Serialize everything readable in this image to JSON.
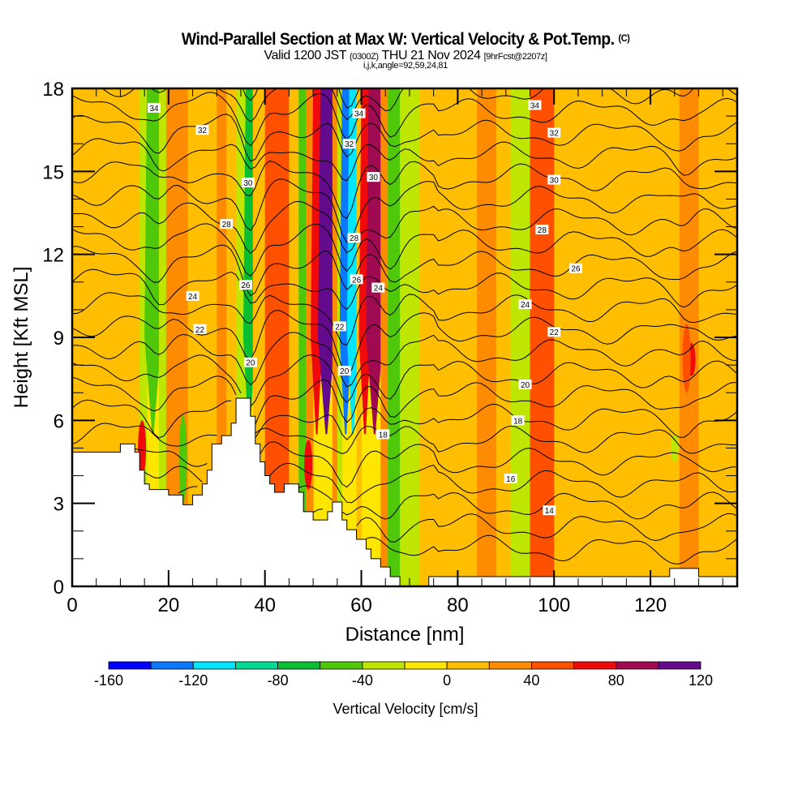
{
  "title": {
    "main": "Wind-Parallel Section at Max W: Vertical Velocity & Pot.Temp.",
    "copyright": "(C)",
    "valid_prefix": "Valid 1200 JST",
    "valid_utc": "(0300Z)",
    "valid_date": "THU 21 Nov 2024",
    "forecast": "[9hrFcst@2207z]",
    "indices": "i,j,k,angle=92,59,24,81"
  },
  "chart_data": {
    "type": "heatmap",
    "title": "Wind-Parallel Section at Max W: Vertical Velocity & Pot.Temp.",
    "xlabel": "Distance [nm]",
    "ylabel": "Height [Kft MSL]",
    "xlim": [
      0,
      138
    ],
    "ylim": [
      0,
      18
    ],
    "xticks": [
      0,
      20,
      40,
      60,
      80,
      100,
      120
    ],
    "xtick_labels": [
      "0",
      "20",
      "40",
      "60",
      "80",
      "100",
      "120"
    ],
    "yticks": [
      0,
      3,
      6,
      9,
      12,
      15,
      18
    ],
    "ytick_labels": [
      "0",
      "3",
      "6",
      "9",
      "12",
      "15",
      "18"
    ],
    "colorbar": {
      "label": "Vertical Velocity [cm/s]",
      "bounds": [
        -160,
        -140,
        -120,
        -100,
        -80,
        -60,
        -40,
        -20,
        0,
        20,
        40,
        60,
        80,
        100,
        120
      ],
      "tick_values": [
        -160,
        -120,
        -80,
        -40,
        0,
        40,
        80,
        120
      ],
      "tick_labels": [
        "-160",
        "-120",
        "-80",
        "-40",
        "0",
        "40",
        "80",
        "120"
      ],
      "colors": [
        "#0000ff",
        "#0a78ff",
        "#00e6ff",
        "#00dc96",
        "#0abe32",
        "#50c80a",
        "#bee600",
        "#ffe600",
        "#ffbe00",
        "#ff8c00",
        "#ff5000",
        "#f00a0a",
        "#a00a50",
        "#640a8c"
      ]
    },
    "vertical_velocity_columns": [
      {
        "x": [
          0,
          5
        ],
        "w": 5
      },
      {
        "x": [
          5,
          11
        ],
        "w": 15
      },
      {
        "x": [
          11,
          14
        ],
        "w": 5
      },
      {
        "x": [
          14,
          15.5
        ],
        "w": -30
      },
      {
        "x": [
          15.5,
          18
        ],
        "w": -60
      },
      {
        "x": [
          18,
          19.5
        ],
        "w": -30
      },
      {
        "x": [
          19.5,
          24
        ],
        "w": 25
      },
      {
        "x": [
          24,
          30
        ],
        "w": 5
      },
      {
        "x": [
          30,
          32
        ],
        "w": 25
      },
      {
        "x": [
          32,
          34
        ],
        "w": 5
      },
      {
        "x": [
          34,
          36
        ],
        "w": -30
      },
      {
        "x": [
          36,
          37.5
        ],
        "w": -70
      },
      {
        "x": [
          37.5,
          40
        ],
        "w": 10
      },
      {
        "x": [
          40,
          45
        ],
        "w": 50
      },
      {
        "x": [
          45,
          47
        ],
        "w": 5
      },
      {
        "x": [
          47,
          48.5
        ],
        "w": -50
      },
      {
        "x": [
          48.5,
          50
        ],
        "w": 30
      },
      {
        "x": [
          50,
          51.5
        ],
        "w": 70
      },
      {
        "x": [
          51.5,
          54
        ],
        "w": 110
      },
      {
        "x": [
          54,
          55
        ],
        "w": 30
      },
      {
        "x": [
          55,
          56
        ],
        "w": -30
      },
      {
        "x": [
          56,
          57.5
        ],
        "w": -130
      },
      {
        "x": [
          57.5,
          59
        ],
        "w": -110
      },
      {
        "x": [
          59,
          60
        ],
        "w": 10
      },
      {
        "x": [
          60,
          61.5
        ],
        "w": 70
      },
      {
        "x": [
          61.5,
          64
        ],
        "w": 90
      },
      {
        "x": [
          64,
          65.5
        ],
        "w": 30
      },
      {
        "x": [
          65.5,
          68
        ],
        "w": -50
      },
      {
        "x": [
          68,
          72
        ],
        "w": -30
      },
      {
        "x": [
          72,
          78
        ],
        "w": 15
      },
      {
        "x": [
          78,
          84
        ],
        "w": 5
      },
      {
        "x": [
          84,
          88
        ],
        "w": 25
      },
      {
        "x": [
          88,
          91
        ],
        "w": 5
      },
      {
        "x": [
          91,
          95
        ],
        "w": -30
      },
      {
        "x": [
          95,
          100
        ],
        "w": 45
      },
      {
        "x": [
          100,
          106
        ],
        "w": 5
      },
      {
        "x": [
          106,
          118
        ],
        "w": 15
      },
      {
        "x": [
          118,
          126
        ],
        "w": 5
      },
      {
        "x": [
          126,
          130
        ],
        "w": 25
      },
      {
        "x": [
          130,
          138
        ],
        "w": 15
      }
    ],
    "local_features": [
      {
        "x": 128.5,
        "ymin": 7.6,
        "ymax": 8.8,
        "w": 70
      },
      {
        "x": 127.5,
        "ymin": 7,
        "ymax": 9.5,
        "w": 45
      },
      {
        "x": 125,
        "ymin": 4.5,
        "ymax": 5.5,
        "w": -30
      },
      {
        "x": 23,
        "ymin": 3,
        "ymax": 6.2,
        "w": -60
      },
      {
        "x": 49,
        "ymin": 3.5,
        "ymax": 5.3,
        "w": 70
      },
      {
        "x": 14.5,
        "ymin": 4,
        "ymax": 6,
        "w": 70
      }
    ],
    "terrain_kft": [
      [
        0,
        4.85
      ],
      [
        10,
        4.85
      ],
      [
        10,
        5.15
      ],
      [
        13,
        5.15
      ],
      [
        13,
        4.85
      ],
      [
        14,
        4.85
      ],
      [
        14,
        4.2
      ],
      [
        15,
        4.2
      ],
      [
        15,
        3.7
      ],
      [
        16,
        3.7
      ],
      [
        16,
        3.5
      ],
      [
        20,
        3.5
      ],
      [
        20,
        3.3
      ],
      [
        23,
        3.3
      ],
      [
        23,
        2.95
      ],
      [
        25,
        2.95
      ],
      [
        25,
        3.3
      ],
      [
        27,
        3.3
      ],
      [
        27,
        3.7
      ],
      [
        28,
        3.7
      ],
      [
        28,
        4.2
      ],
      [
        29,
        4.2
      ],
      [
        29,
        5.15
      ],
      [
        31,
        5.15
      ],
      [
        31,
        5.45
      ],
      [
        33,
        5.45
      ],
      [
        33,
        5.9
      ],
      [
        34,
        5.9
      ],
      [
        34,
        6.8
      ],
      [
        37,
        6.8
      ],
      [
        37,
        6.15
      ],
      [
        38,
        6.15
      ],
      [
        38,
        5.15
      ],
      [
        39,
        5.15
      ],
      [
        39,
        4.5
      ],
      [
        40,
        4.5
      ],
      [
        40,
        4.0
      ],
      [
        41,
        4.0
      ],
      [
        41,
        3.7
      ],
      [
        42,
        3.7
      ],
      [
        42,
        3.4
      ],
      [
        44,
        3.4
      ],
      [
        44,
        3.7
      ],
      [
        47,
        3.7
      ],
      [
        47,
        3.4
      ],
      [
        48,
        3.4
      ],
      [
        48,
        2.7
      ],
      [
        50,
        2.7
      ],
      [
        50,
        2.4
      ],
      [
        53,
        2.4
      ],
      [
        53,
        2.7
      ],
      [
        54,
        2.7
      ],
      [
        54,
        3.05
      ],
      [
        56,
        3.05
      ],
      [
        56,
        2.4
      ],
      [
        57,
        2.4
      ],
      [
        57,
        2.05
      ],
      [
        59,
        2.05
      ],
      [
        59,
        1.7
      ],
      [
        61,
        1.7
      ],
      [
        61,
        1.35
      ],
      [
        62,
        1.35
      ],
      [
        62,
        1.0
      ],
      [
        64,
        1.0
      ],
      [
        64,
        0.7
      ],
      [
        66,
        0.7
      ],
      [
        66,
        0.35
      ],
      [
        68,
        0.35
      ],
      [
        68,
        0.0
      ],
      [
        74,
        0.0
      ],
      [
        74,
        0.35
      ],
      [
        124,
        0.35
      ],
      [
        124,
        0.65
      ],
      [
        130,
        0.65
      ],
      [
        130,
        0.35
      ],
      [
        138,
        0.35
      ]
    ],
    "potential_temperature_contours": {
      "levels": [
        13,
        14,
        15,
        16,
        17,
        18,
        19,
        20,
        21,
        22,
        23,
        24,
        25,
        26,
        27,
        28,
        29,
        30,
        31,
        32,
        33,
        34,
        35
      ],
      "labels": [
        {
          "text": "34",
          "x": 17,
          "y": 17.3
        },
        {
          "text": "32",
          "x": 27,
          "y": 16.5
        },
        {
          "text": "30",
          "x": 36.5,
          "y": 14.6
        },
        {
          "text": "28",
          "x": 32,
          "y": 13.1
        },
        {
          "text": "26",
          "x": 36,
          "y": 10.9
        },
        {
          "text": "24",
          "x": 25,
          "y": 10.5
        },
        {
          "text": "22",
          "x": 26.5,
          "y": 9.3
        },
        {
          "text": "20",
          "x": 37,
          "y": 8.1
        },
        {
          "text": "34",
          "x": 59.5,
          "y": 17.1
        },
        {
          "text": "32",
          "x": 57.5,
          "y": 16.0
        },
        {
          "text": "30",
          "x": 62.5,
          "y": 14.8
        },
        {
          "text": "28",
          "x": 58.5,
          "y": 12.6
        },
        {
          "text": "26",
          "x": 59,
          "y": 11.1
        },
        {
          "text": "24",
          "x": 63.5,
          "y": 10.8
        },
        {
          "text": "22",
          "x": 55.5,
          "y": 9.4
        },
        {
          "text": "20",
          "x": 56.5,
          "y": 7.8
        },
        {
          "text": "18",
          "x": 64.5,
          "y": 5.5
        },
        {
          "text": "34",
          "x": 96,
          "y": 17.4
        },
        {
          "text": "32",
          "x": 100,
          "y": 16.4
        },
        {
          "text": "30",
          "x": 100,
          "y": 14.7
        },
        {
          "text": "28",
          "x": 97.5,
          "y": 12.9
        },
        {
          "text": "26",
          "x": 104.5,
          "y": 11.5
        },
        {
          "text": "24",
          "x": 94,
          "y": 10.2
        },
        {
          "text": "22",
          "x": 100,
          "y": 9.2
        },
        {
          "text": "20",
          "x": 94,
          "y": 7.3
        },
        {
          "text": "18",
          "x": 92.5,
          "y": 6.0
        },
        {
          "text": "16",
          "x": 91,
          "y": 3.9
        },
        {
          "text": "14",
          "x": 99,
          "y": 2.75
        }
      ]
    }
  }
}
